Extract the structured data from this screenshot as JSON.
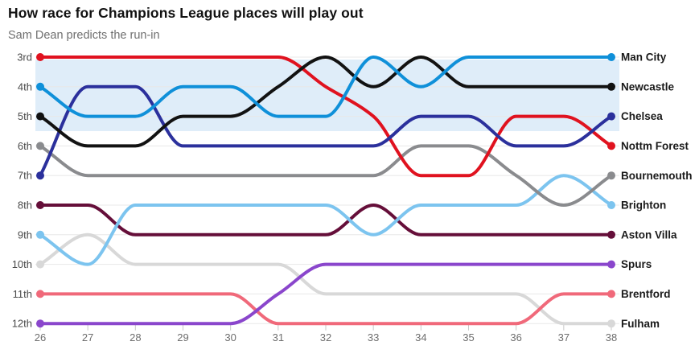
{
  "header": {
    "title": "How race for Champions League places will play out",
    "subtitle": "Sam Dean predicts the run-in"
  },
  "chart_data": {
    "type": "line",
    "variant": "bump-rank-chart",
    "x": [
      26,
      27,
      28,
      29,
      30,
      31,
      32,
      33,
      34,
      35,
      36,
      37,
      38
    ],
    "rank_labels": [
      "3rd",
      "4th",
      "5th",
      "6th",
      "7th",
      "8th",
      "9th",
      "10th",
      "11th",
      "12th"
    ],
    "rank_range": [
      3,
      12
    ],
    "grid": true,
    "legend_position": "right-of-line-ends",
    "highlight_band": {
      "covers_ranks": [
        3,
        5
      ],
      "color": "#dfedf9"
    },
    "series": [
      {
        "name": "Man City",
        "color": "#0f90d9",
        "values": [
          4,
          5,
          5,
          4,
          4,
          5,
          5,
          3,
          4,
          3,
          3,
          3,
          3
        ]
      },
      {
        "name": "Newcastle",
        "color": "#121212",
        "values": [
          5,
          6,
          6,
          5,
          5,
          4,
          3,
          4,
          3,
          4,
          4,
          4,
          4
        ]
      },
      {
        "name": "Chelsea",
        "color": "#2b309c",
        "values": [
          7,
          4,
          4,
          6,
          6,
          6,
          6,
          6,
          5,
          5,
          6,
          6,
          5
        ]
      },
      {
        "name": "Nottm Forest",
        "color": "#e0121f",
        "values": [
          3,
          3,
          3,
          3,
          3,
          3,
          4,
          5,
          7,
          7,
          5,
          5,
          6
        ]
      },
      {
        "name": "Bournemouth",
        "color": "#8a8b8e",
        "values": [
          6,
          7,
          7,
          7,
          7,
          7,
          7,
          7,
          6,
          6,
          7,
          8,
          7
        ]
      },
      {
        "name": "Brighton",
        "color": "#7cc4ef",
        "values": [
          9,
          10,
          8,
          8,
          8,
          8,
          8,
          9,
          8,
          8,
          8,
          7,
          8
        ]
      },
      {
        "name": "Aston Villa",
        "color": "#650e39",
        "values": [
          8,
          8,
          9,
          9,
          9,
          9,
          9,
          8,
          9,
          9,
          9,
          9,
          9
        ]
      },
      {
        "name": "Spurs",
        "color": "#8a46cc",
        "values": [
          12,
          12,
          12,
          12,
          12,
          11,
          10,
          10,
          10,
          10,
          10,
          10,
          10
        ]
      },
      {
        "name": "Brentford",
        "color": "#f0697a",
        "values": [
          11,
          11,
          11,
          11,
          11,
          12,
          12,
          12,
          12,
          12,
          12,
          11,
          11
        ]
      },
      {
        "name": "Fulham",
        "color": "#d8d8d8",
        "values": [
          10,
          9,
          10,
          10,
          10,
          10,
          11,
          11,
          11,
          11,
          11,
          12,
          12
        ]
      }
    ],
    "colors": {
      "grid_line": "#e8e8e8",
      "axis_tick": "#c9c9c9",
      "week_label_text": "#6e6e6e",
      "rank_label_text": "#4a4a4a",
      "team_label_text": "#1a1a1a",
      "background": "#ffffff"
    }
  }
}
